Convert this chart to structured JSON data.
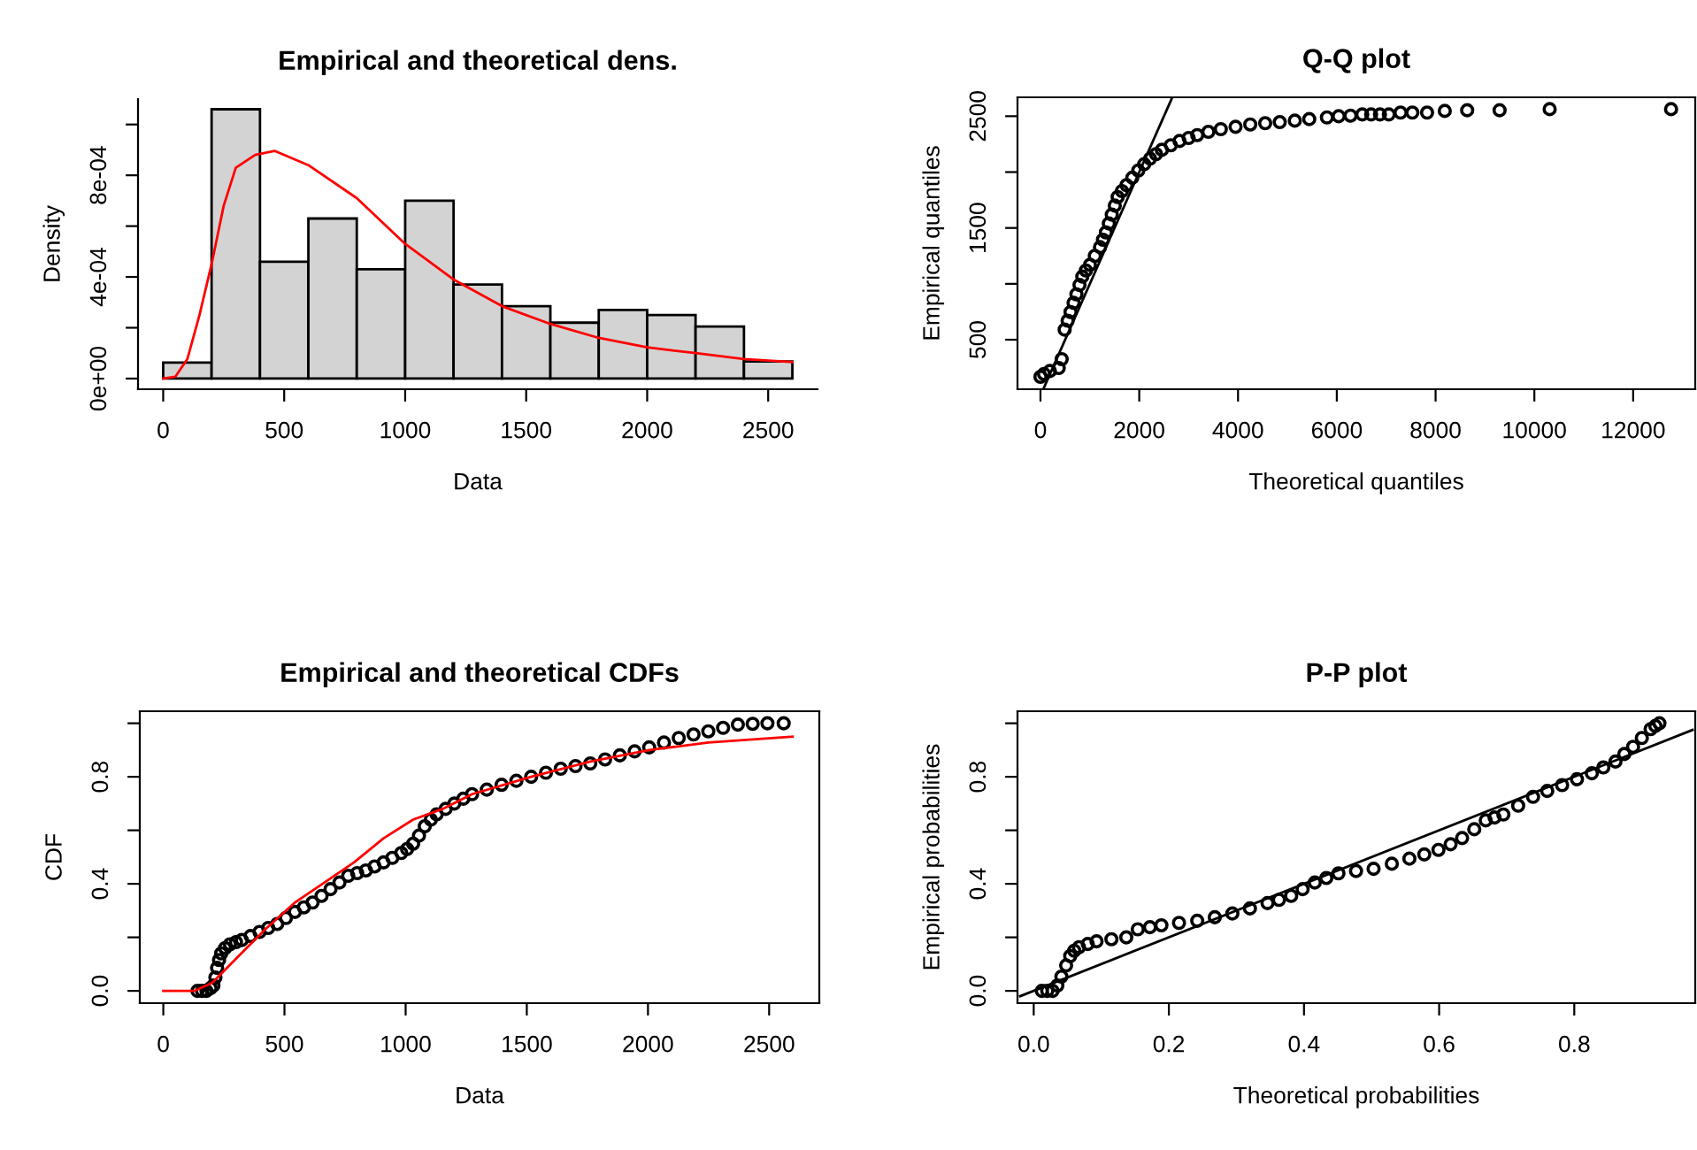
{
  "chart_data": [
    {
      "type": "histogram",
      "title": "Empirical and theoretical dens.",
      "xlabel": "Data",
      "ylabel": "Density",
      "bins": [
        0,
        200,
        400,
        600,
        800,
        1000,
        1200,
        1400,
        1600,
        1800,
        2000,
        2200,
        2400,
        2600
      ],
      "series": [
        {
          "type": "histogram",
          "color": "#d3d3d3",
          "values": [
            6.3e-05,
            0.00106,
            0.00046,
            0.00063,
            0.00043,
            0.0007,
            0.00037,
            0.000285,
            0.00022,
            0.00027,
            0.00025,
            0.000205,
            6.7e-05
          ]
        },
        {
          "type": "line",
          "color": "#ff0000",
          "x": [
            0,
            50,
            100,
            150,
            200,
            250,
            300,
            380,
            460,
            600,
            800,
            1000,
            1200,
            1400,
            1600,
            1800,
            2000,
            2200,
            2400,
            2600
          ],
          "values": [
            0,
            7e-06,
            7.7e-05,
            0.00025,
            0.00045,
            0.00068,
            0.00083,
            0.00088,
            0.000896,
            0.00084,
            0.00071,
            0.00053,
            0.00039,
            0.000285,
            0.000215,
            0.00016,
            0.000123,
            0.0001,
            7.7e-05,
            6.5e-05
          ]
        }
      ],
      "xlim": [
        -104,
        2704
      ],
      "ylim": [
        -4.2e-05,
        0.0011
      ],
      "xticks": [
        0,
        500,
        1000,
        1500,
        2000,
        2500
      ],
      "yticks": [
        {
          "value": 0,
          "label": "0e+00"
        },
        {
          "value": 0.0002,
          "label": null
        },
        {
          "value": 0.0004,
          "label": "4e-04"
        },
        {
          "value": 0.0006,
          "label": null
        },
        {
          "value": 0.0008,
          "label": "8e-04"
        },
        {
          "value": 0.001,
          "label": null
        }
      ]
    },
    {
      "type": "scatter",
      "title": "Q-Q plot",
      "xlabel": "Theoretical quantiles",
      "ylabel": "Empirical quantiles",
      "series": [
        {
          "type": "scatter",
          "marker": "circle",
          "color": "#000000",
          "x": [
            0,
            72,
            191,
            370,
            430,
            490,
            550,
            609,
            670,
            728,
            790,
            847,
            920,
            1002,
            1100,
            1205,
            1265,
            1325,
            1385,
            1444,
            1505,
            1563,
            1650,
            1742,
            1860,
            1981,
            2100,
            2220,
            2340,
            2458,
            2640,
            2816,
            3000,
            3174,
            3400,
            3652,
            3950,
            4248,
            4550,
            4845,
            5150,
            5442,
            5800,
            6038,
            6277,
            6516,
            6695,
            6874,
            7053,
            7291,
            7530,
            7828,
            8186,
            8640,
            9296,
            10310,
            12768
          ],
          "values": [
            168,
            194,
            220,
            247,
            326,
            590,
            670,
            748,
            830,
            906,
            990,
            1065,
            1120,
            1170,
            1250,
            1328,
            1395,
            1460,
            1540,
            1619,
            1700,
            1777,
            1830,
            1883,
            1950,
            2014,
            2070,
            2120,
            2160,
            2199,
            2240,
            2278,
            2305,
            2331,
            2360,
            2384,
            2405,
            2426,
            2437,
            2447,
            2460,
            2474,
            2489,
            2500,
            2505,
            2516,
            2516,
            2516,
            2516,
            2532,
            2532,
            2532,
            2547,
            2553,
            2553,
            2563,
            2563
          ]
        },
        {
          "type": "line",
          "color": "#000000",
          "x": [
            60,
            2660
          ],
          "values": [
            60,
            2660
          ]
        }
      ],
      "xlim": [
        -465,
        13257
      ],
      "ylim": [
        57,
        2669
      ],
      "xticks": [
        0,
        2000,
        4000,
        6000,
        8000,
        10000,
        12000
      ],
      "yticks": [
        500,
        {
          "value": 1000,
          "label": null
        },
        1500,
        {
          "value": 2000,
          "label": null
        },
        2500
      ]
    },
    {
      "type": "scatter",
      "title": "Empirical and theoretical CDFs",
      "xlabel": "Data",
      "ylabel": "CDF",
      "series": [
        {
          "type": "scatter",
          "marker": "circle",
          "color": "#000000",
          "x": [
            141,
            160,
            178,
            195,
            207,
            215,
            222,
            230,
            239,
            255,
            275,
            300,
            324,
            360,
            397,
            433,
            470,
            506,
            543,
            580,
            616,
            653,
            690,
            727,
            763,
            800,
            836,
            872,
            909,
            945,
            982,
            1006,
            1031,
            1055,
            1079,
            1104,
            1128,
            1165,
            1201,
            1238,
            1274,
            1335,
            1396,
            1457,
            1518,
            1579,
            1640,
            1701,
            1762,
            1823,
            1884,
            1945,
            2005,
            2066,
            2127,
            2188,
            2249,
            2310,
            2371,
            2432,
            2493,
            2560
          ],
          "values": [
            0,
            0,
            0,
            0.01,
            0.02,
            0.05,
            0.086,
            0.115,
            0.14,
            0.16,
            0.174,
            0.182,
            0.19,
            0.205,
            0.22,
            0.235,
            0.25,
            0.272,
            0.295,
            0.312,
            0.33,
            0.355,
            0.38,
            0.405,
            0.43,
            0.44,
            0.45,
            0.465,
            0.48,
            0.497,
            0.515,
            0.53,
            0.55,
            0.58,
            0.615,
            0.64,
            0.66,
            0.68,
            0.7,
            0.718,
            0.735,
            0.752,
            0.77,
            0.785,
            0.8,
            0.815,
            0.83,
            0.84,
            0.85,
            0.865,
            0.88,
            0.895,
            0.91,
            0.928,
            0.945,
            0.958,
            0.97,
            0.983,
            0.995,
            0.998,
            1.0,
            1.0
          ]
        },
        {
          "type": "line",
          "color": "#ff0000",
          "x": [
            0,
            129,
            202,
            300,
            421,
            543,
            665,
            787,
            909,
            1031,
            1153,
            1274,
            1518,
            1762,
            2005,
            2249,
            2597
          ],
          "values": [
            0,
            0,
            0.03,
            0.12,
            0.23,
            0.33,
            0.405,
            0.48,
            0.57,
            0.64,
            0.68,
            0.735,
            0.8,
            0.857,
            0.9,
            0.928,
            0.95
          ]
        }
      ],
      "xlim": [
        -97,
        2707
      ],
      "ylim": [
        -0.046,
        1.045
      ],
      "xticks": [
        0,
        500,
        1000,
        1500,
        2000,
        2500
      ],
      "yticks": [
        {
          "value": 0,
          "label": "0.0"
        },
        {
          "value": 0.2,
          "label": null
        },
        0.4,
        {
          "value": 0.6,
          "label": null
        },
        0.8,
        {
          "value": 1.0,
          "label": null
        }
      ]
    },
    {
      "type": "scatter",
      "title": "P-P plot",
      "xlabel": "Theoretical probabilities",
      "ylabel": "Empirical probabilities",
      "series": [
        {
          "type": "scatter",
          "marker": "circle",
          "color": "#000000",
          "x": [
            0.012,
            0.02,
            0.028,
            0.035,
            0.041,
            0.048,
            0.054,
            0.06,
            0.067,
            0.08,
            0.093,
            0.115,
            0.137,
            0.154,
            0.172,
            0.189,
            0.215,
            0.242,
            0.268,
            0.294,
            0.32,
            0.346,
            0.363,
            0.381,
            0.398,
            0.416,
            0.433,
            0.451,
            0.477,
            0.503,
            0.53,
            0.556,
            0.578,
            0.599,
            0.617,
            0.634,
            0.652,
            0.669,
            0.682,
            0.695,
            0.717,
            0.739,
            0.76,
            0.782,
            0.804,
            0.826,
            0.843,
            0.861,
            0.874,
            0.887,
            0.9,
            0.913,
            0.92,
            0.926
          ],
          "values": [
            0,
            0,
            0,
            0.02,
            0.053,
            0.095,
            0.13,
            0.15,
            0.163,
            0.175,
            0.185,
            0.193,
            0.2,
            0.23,
            0.238,
            0.245,
            0.254,
            0.262,
            0.275,
            0.289,
            0.308,
            0.328,
            0.34,
            0.355,
            0.38,
            0.405,
            0.422,
            0.439,
            0.448,
            0.456,
            0.475,
            0.494,
            0.51,
            0.527,
            0.548,
            0.571,
            0.604,
            0.637,
            0.648,
            0.659,
            0.692,
            0.725,
            0.747,
            0.769,
            0.791,
            0.813,
            0.835,
            0.857,
            0.885,
            0.912,
            0.945,
            0.978,
            0.99,
            1.0
          ]
        },
        {
          "type": "line",
          "color": "#000000",
          "x": [
            -0.02,
            0.975
          ],
          "values": [
            -0.02,
            0.975
          ]
        }
      ],
      "xlim": [
        -0.024,
        0.979
      ],
      "ylim": [
        -0.046,
        1.045
      ],
      "xticks": [
        {
          "value": 0,
          "label": "0.0"
        },
        0.2,
        0.4,
        0.6,
        0.8
      ],
      "yticks": [
        {
          "value": 0,
          "label": "0.0"
        },
        {
          "value": 0.2,
          "label": null
        },
        0.4,
        {
          "value": 0.6,
          "label": null
        },
        0.8,
        {
          "value": 1.0,
          "label": null
        }
      ]
    }
  ]
}
